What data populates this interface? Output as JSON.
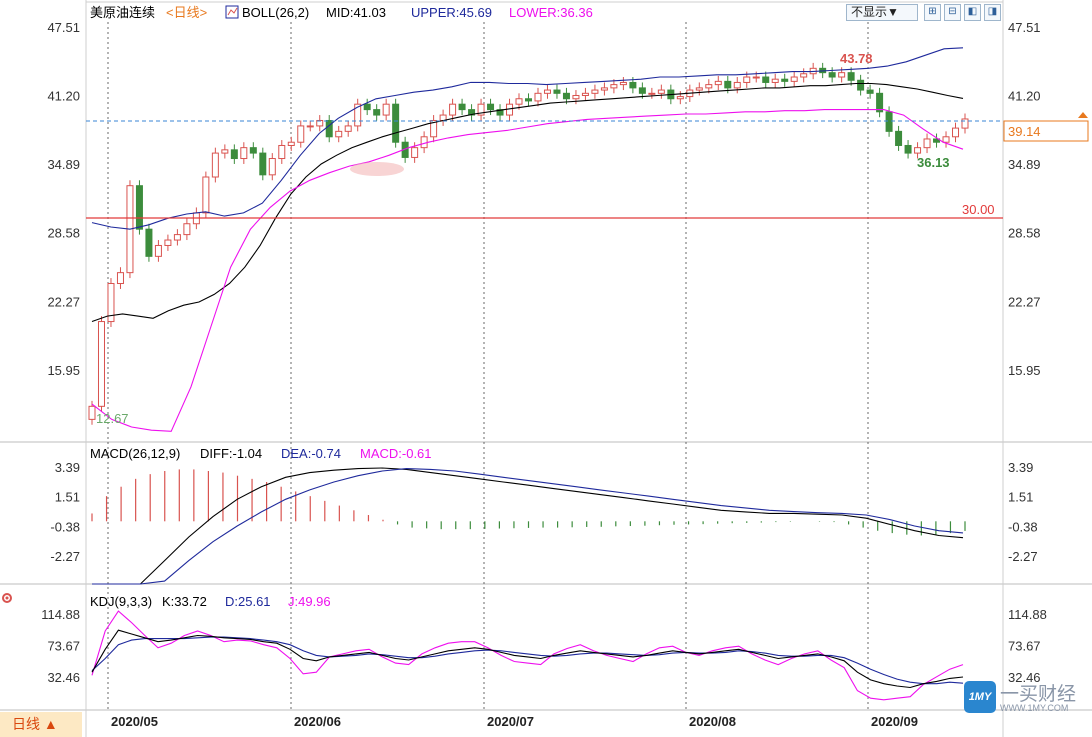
{
  "colors": {
    "up": "#d9534f",
    "down": "#3c8c3c",
    "mid": "#000000",
    "upper": "#1f2a9c",
    "lower": "#ee10ee",
    "grid": "#cccccc",
    "dash": "#3a86d6",
    "accent": "#e8791e"
  },
  "toolbar": {
    "dropdown_label": "不显示",
    "btn_icons": [
      "zoom-in-icon",
      "zoom-out-icon",
      "arrow-left-icon",
      "arrow-right-icon"
    ]
  },
  "period_label": "日线",
  "watermark": {
    "main": "一买财经",
    "url": "WWW.1MY.COM",
    "badge": "1MY"
  },
  "main_panel": {
    "symbol": "美原油连续",
    "freq": "<日线>",
    "boll_label": "BOLL(26,2)",
    "mid_label": "MID:41.03",
    "upper_label": "UPPER:45.69",
    "lower_label": "LOWER:36.36",
    "y_ticks": [
      "47.51",
      "41.20",
      "34.89",
      "28.58",
      "22.27",
      "15.95"
    ],
    "current_price": "39.14",
    "hline_label": "30.00",
    "annot_high": "43.78",
    "annot_low1": "36.13",
    "annot_low2": "12.67"
  },
  "macd_panel": {
    "label": "MACD(26,12,9)",
    "diff_label": "DIFF:-1.04",
    "dea_label": "DEA:-0.74",
    "macd_label": "MACD:-0.61",
    "y_ticks": [
      "3.39",
      "1.51",
      "-0.38",
      "-2.27"
    ]
  },
  "kdj_panel": {
    "label": "KDJ(9,3,3)",
    "k_label": "K:33.72",
    "d_label": "D:25.61",
    "j_label": "J:49.96",
    "y_ticks": [
      "114.88",
      "73.67",
      "32.46"
    ]
  },
  "x_labels": [
    "2020/05",
    "2020/06",
    "2020/07",
    "2020/08",
    "2020/09"
  ],
  "chart_data": {
    "type": "candlestick",
    "period": "daily",
    "months": [
      "2020/05",
      "2020/06",
      "2020/07",
      "2020/08",
      "2020/09"
    ],
    "close": [
      12.7,
      20.5,
      24.0,
      25.0,
      33.0,
      29.0,
      26.5,
      27.5,
      28.0,
      28.5,
      29.5,
      30.5,
      33.8,
      36.0,
      36.3,
      35.5,
      36.5,
      36.0,
      34.0,
      35.5,
      36.7,
      37.0,
      38.5,
      38.5,
      39.0,
      37.5,
      38.0,
      38.5,
      40.5,
      40.0,
      39.5,
      40.5,
      37.0,
      35.6,
      36.5,
      37.5,
      39.0,
      39.5,
      40.5,
      40.0,
      39.5,
      40.5,
      40.0,
      39.5,
      40.5,
      41.0,
      40.8,
      41.5,
      41.8,
      41.5,
      41.0,
      41.3,
      41.5,
      41.8,
      42.0,
      42.3,
      42.5,
      42.0,
      41.5,
      41.5,
      41.8,
      41.0,
      41.2,
      41.8,
      42.0,
      42.3,
      42.6,
      42.0,
      42.5,
      43.0,
      43.0,
      42.5,
      42.8,
      42.6,
      43.0,
      43.3,
      43.8,
      43.4,
      43.0,
      43.4,
      42.7,
      41.8,
      41.5,
      39.8,
      38.0,
      36.7,
      36.0,
      36.5,
      37.3,
      37.0,
      37.5,
      38.3,
      39.14
    ],
    "upper": [
      30.5,
      30.0,
      29.6,
      30.0,
      31.0,
      31.3,
      31.5,
      30.8,
      31.5,
      33.0,
      36.0,
      37.5,
      39.5,
      40.8,
      41.5,
      41.8,
      42.2,
      42.5,
      42.8,
      43.0,
      43.1,
      43.0,
      42.8,
      42.5,
      42.3,
      42.1,
      42.0,
      42.2,
      42.3,
      42.4,
      42.5,
      42.6,
      42.8,
      43.0,
      43.0,
      43.1,
      43.2,
      43.3,
      43.3,
      43.4,
      43.5,
      43.6,
      43.6,
      43.7,
      43.7,
      43.8,
      43.8,
      43.8,
      43.8,
      43.9,
      43.9,
      43.9,
      43.9,
      43.9,
      43.8,
      43.8,
      43.9,
      44.0,
      44.2,
      44.5,
      45.0,
      45.3,
      45.6,
      45.69
    ],
    "upper_start_index": 29,
    "mid": [
      20.5,
      21.0,
      21.2,
      21.0,
      20.8,
      21.5,
      22.0,
      22.3,
      23.0,
      24.0,
      25.5,
      27.5,
      30.0,
      32.2,
      33.8,
      35.0,
      35.8,
      36.5,
      37.0,
      37.5,
      37.9,
      38.3,
      38.7,
      39.0,
      39.3,
      39.6,
      39.8,
      40.0,
      40.2,
      40.4,
      40.6,
      40.7,
      40.8,
      40.9,
      41.0,
      41.1,
      41.2,
      41.3,
      41.4,
      41.5,
      41.6,
      41.7,
      41.8,
      41.9,
      42.0,
      42.0,
      42.1,
      42.2,
      42.2,
      42.3,
      42.4,
      42.4,
      42.3,
      42.1,
      41.9,
      41.6,
      41.3,
      41.03
    ],
    "mid_start_index": 0,
    "lower": [
      12.9,
      11.5,
      10.8,
      10.5,
      10.4,
      14.5,
      20.0,
      25.5,
      29.0,
      31.0,
      32.5,
      33.5,
      34.2,
      34.8,
      35.2,
      35.8,
      36.5,
      37.0,
      37.4,
      37.7,
      37.9,
      38.1,
      38.4,
      38.7,
      38.9,
      39.1,
      39.2,
      39.3,
      39.4,
      39.5,
      39.6,
      39.6,
      39.7,
      39.8,
      39.8,
      39.9,
      39.9,
      40.0,
      40.0,
      40.0,
      40.0,
      39.5,
      38.2,
      37.0,
      36.36
    ],
    "lower_start_index": 0,
    "annotations": {
      "high": 43.78,
      "low_recent": 36.13,
      "low_start": 12.67,
      "level_line": 30.0,
      "last": 39.14
    },
    "y_axis_main": {
      "ticks": [
        47.51,
        41.2,
        34.89,
        28.58,
        22.27,
        15.95
      ]
    },
    "macd": {
      "diff": -1.04,
      "dea": -0.74,
      "macd": -0.61,
      "y_ticks": [
        3.39,
        1.51,
        -0.38,
        -2.27
      ],
      "hist": [
        0.5,
        1.6,
        2.2,
        2.7,
        3.0,
        3.2,
        3.3,
        3.3,
        3.2,
        3.1,
        2.9,
        2.7,
        2.5,
        2.2,
        1.9,
        1.6,
        1.3,
        1.0,
        0.7,
        0.4,
        0.1,
        -0.2,
        -0.4,
        -0.45,
        -0.5,
        -0.5,
        -0.5,
        -0.48,
        -0.46,
        -0.44,
        -0.42,
        -0.4,
        -0.4,
        -0.38,
        -0.36,
        -0.35,
        -0.32,
        -0.3,
        -0.28,
        -0.25,
        -0.22,
        -0.2,
        -0.18,
        -0.15,
        -0.12,
        -0.1,
        -0.08,
        -0.05,
        -0.03,
        0.0,
        -0.03,
        -0.05,
        -0.2,
        -0.4,
        -0.6,
        -0.75,
        -0.85,
        -0.9,
        -0.85,
        -0.75,
        -0.61
      ],
      "diff_line": [
        -6.5,
        -5.5,
        -4.0,
        -2.5,
        -1.0,
        0.3,
        1.4,
        2.2,
        2.8,
        3.1,
        3.25,
        3.35,
        3.39,
        3.3,
        3.1,
        2.9,
        2.7,
        2.5,
        2.3,
        2.1,
        1.9,
        1.7,
        1.5,
        1.3,
        1.1,
        0.9,
        0.7,
        0.6,
        0.5,
        0.5,
        0.45,
        0.4,
        0.2,
        -0.2,
        -0.6,
        -0.9,
        -1.04
      ],
      "dea_line": [
        -6.8,
        -6.0,
        -5.0,
        -3.8,
        -2.5,
        -1.3,
        -0.3,
        0.6,
        1.4,
        2.0,
        2.5,
        2.9,
        3.2,
        3.35,
        3.3,
        3.2,
        3.0,
        2.8,
        2.6,
        2.4,
        2.2,
        2.0,
        1.8,
        1.6,
        1.4,
        1.2,
        1.0,
        0.85,
        0.7,
        0.62,
        0.55,
        0.5,
        0.4,
        0.1,
        -0.3,
        -0.6,
        -0.74
      ]
    },
    "kdj": {
      "k": 33.72,
      "d": 25.61,
      "j": 49.96,
      "y_ticks": [
        114.88,
        73.67,
        32.46
      ],
      "k_line": [
        40,
        70,
        95,
        90,
        85,
        80,
        82,
        85,
        88,
        87,
        85,
        84,
        83,
        80,
        78,
        70,
        58,
        55,
        60,
        62,
        64,
        66,
        62,
        58,
        56,
        60,
        64,
        68,
        70,
        72,
        70,
        66,
        62,
        60,
        58,
        62,
        65,
        68,
        66,
        64,
        62,
        60,
        62,
        65,
        68,
        66,
        64,
        66,
        68,
        70,
        66,
        62,
        58,
        60,
        62,
        64,
        60,
        55,
        40,
        30,
        25,
        22,
        20,
        25,
        28,
        32,
        33.72
      ],
      "d_line": [
        42,
        58,
        76,
        82,
        84,
        84,
        84,
        84,
        85,
        86,
        86,
        85,
        84,
        82,
        80,
        76,
        68,
        62,
        60,
        61,
        62,
        64,
        63,
        61,
        59,
        59,
        61,
        64,
        66,
        68,
        69,
        68,
        66,
        64,
        62,
        61,
        62,
        64,
        65,
        65,
        64,
        63,
        62,
        63,
        65,
        66,
        65,
        65,
        66,
        68,
        67,
        65,
        62,
        61,
        61,
        62,
        62,
        59,
        52,
        44,
        37,
        31,
        27,
        25,
        25,
        27,
        25.61
      ],
      "j_line": [
        36,
        94,
        120,
        105,
        88,
        72,
        78,
        88,
        94,
        88,
        80,
        82,
        81,
        76,
        72,
        58,
        38,
        40,
        60,
        64,
        68,
        70,
        60,
        52,
        50,
        64,
        72,
        78,
        80,
        80,
        72,
        62,
        54,
        52,
        50,
        64,
        71,
        76,
        68,
        62,
        58,
        54,
        64,
        72,
        74,
        66,
        62,
        68,
        72,
        74,
        64,
        56,
        50,
        58,
        64,
        68,
        56,
        46,
        16,
        6,
        4,
        6,
        8,
        24,
        34,
        44,
        49.96
      ]
    }
  }
}
